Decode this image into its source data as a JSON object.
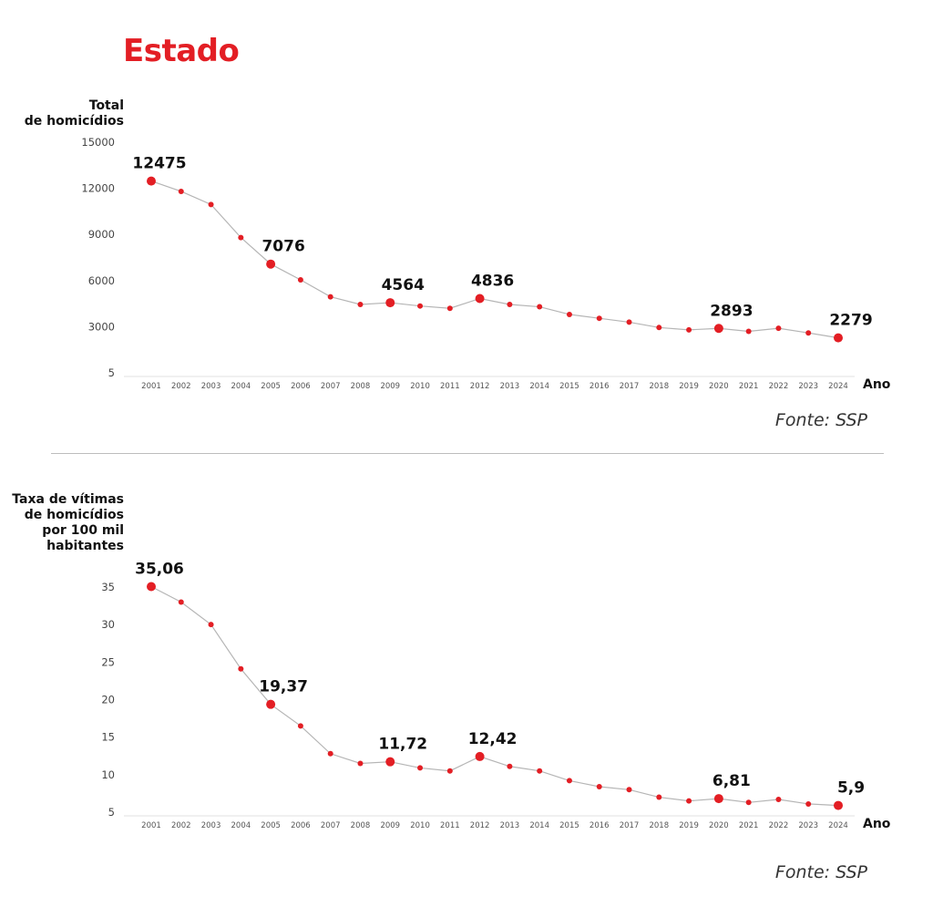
{
  "page": {
    "title": "Estado"
  },
  "chart_data": [
    {
      "type": "line",
      "title": "Total de homicídios",
      "ylabel_lines": [
        "Total",
        "de homicídios"
      ],
      "xlabel": "Ano",
      "source": "Fonte: SSP",
      "accent_color": "#e31e24",
      "line_color": "#b5b5b5",
      "categories": [
        "2001",
        "2002",
        "2003",
        "2004",
        "2005",
        "2006",
        "2007",
        "2008",
        "2009",
        "2010",
        "2011",
        "2012",
        "2013",
        "2014",
        "2015",
        "2016",
        "2017",
        "2018",
        "2019",
        "2020",
        "2021",
        "2022",
        "2023",
        "2024"
      ],
      "values": [
        12475,
        11800,
        10950,
        8800,
        7076,
        6050,
        4950,
        4450,
        4564,
        4350,
        4200,
        4836,
        4450,
        4300,
        3800,
        3550,
        3300,
        2950,
        2800,
        2893,
        2700,
        2900,
        2600,
        2279
      ],
      "highlights": [
        {
          "category": "2001",
          "label": "12475"
        },
        {
          "category": "2005",
          "label": "7076"
        },
        {
          "category": "2009",
          "label": "4564"
        },
        {
          "category": "2012",
          "label": "4836"
        },
        {
          "category": "2020",
          "label": "2893"
        },
        {
          "category": "2024",
          "label": "2279"
        }
      ],
      "yticks": [
        {
          "value": 5,
          "label": "5"
        },
        {
          "value": 3000,
          "label": "3000"
        },
        {
          "value": 6000,
          "label": "6000"
        },
        {
          "value": 9000,
          "label": "9000"
        },
        {
          "value": 12000,
          "label": "12000"
        },
        {
          "value": 15000,
          "label": "15000"
        }
      ],
      "ylim": [
        5,
        15000
      ],
      "grid": false
    },
    {
      "type": "line",
      "title": "Taxa de vítimas de homicídios por 100 mil habitantes",
      "ylabel_lines": [
        "Taxa de vítimas",
        "de homicídios",
        "por 100 mil",
        "habitantes"
      ],
      "xlabel": "Ano",
      "source": "Fonte: SSP",
      "accent_color": "#e31e24",
      "line_color": "#b5b5b5",
      "categories": [
        "2001",
        "2002",
        "2003",
        "2004",
        "2005",
        "2006",
        "2007",
        "2008",
        "2009",
        "2010",
        "2011",
        "2012",
        "2013",
        "2014",
        "2015",
        "2016",
        "2017",
        "2018",
        "2019",
        "2020",
        "2021",
        "2022",
        "2023",
        "2024"
      ],
      "values": [
        35.06,
        33.0,
        30.0,
        24.1,
        19.37,
        16.5,
        12.8,
        11.5,
        11.72,
        10.9,
        10.5,
        12.42,
        11.1,
        10.5,
        9.2,
        8.4,
        8.0,
        7.0,
        6.5,
        6.81,
        6.3,
        6.7,
        6.1,
        5.9
      ],
      "highlights": [
        {
          "category": "2001",
          "label": "35,06"
        },
        {
          "category": "2005",
          "label": "19,37"
        },
        {
          "category": "2009",
          "label": "11,72"
        },
        {
          "category": "2012",
          "label": "12,42"
        },
        {
          "category": "2020",
          "label": "6,81"
        },
        {
          "category": "2024",
          "label": "5,9"
        }
      ],
      "yticks": [
        {
          "value": 5,
          "label": "5"
        },
        {
          "value": 10,
          "label": "10"
        },
        {
          "value": 15,
          "label": "15"
        },
        {
          "value": 20,
          "label": "20"
        },
        {
          "value": 25,
          "label": "25"
        },
        {
          "value": 30,
          "label": "30"
        },
        {
          "value": 35,
          "label": "35"
        }
      ],
      "ylim": [
        5,
        35
      ],
      "grid": false
    }
  ]
}
